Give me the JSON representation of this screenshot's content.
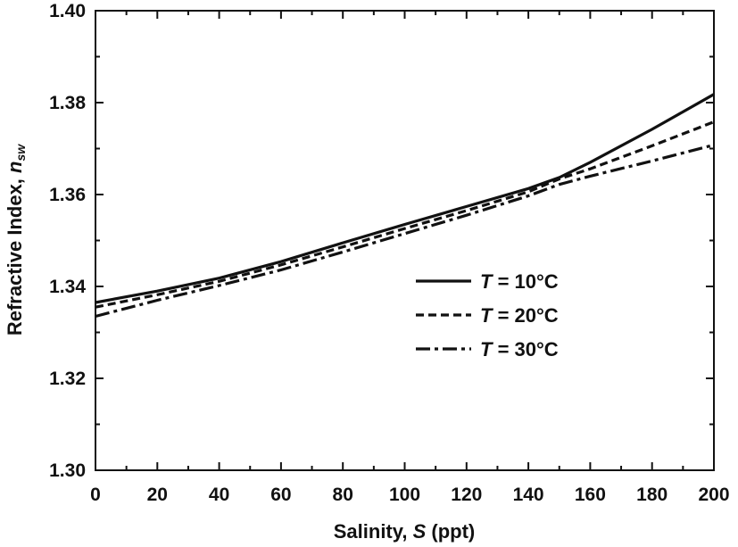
{
  "chart_data": {
    "type": "line",
    "title": "",
    "xlabel": {
      "prefix": "Salinity, ",
      "var": "S",
      "suffix": " (ppt)"
    },
    "ylabel": {
      "prefix": "Refractive Index, ",
      "var": "n",
      "sub": "sw"
    },
    "xlim": [
      0,
      200
    ],
    "ylim": [
      1.3,
      1.4
    ],
    "xticks": [
      0,
      20,
      40,
      60,
      80,
      100,
      120,
      140,
      160,
      180,
      200
    ],
    "yticks": [
      1.3,
      1.32,
      1.34,
      1.36,
      1.38,
      1.4
    ],
    "xtick_labels": [
      "0",
      "20",
      "40",
      "60",
      "80",
      "100",
      "120",
      "140",
      "160",
      "180",
      "200"
    ],
    "ytick_labels": [
      "1.30",
      "1.32",
      "1.34",
      "1.36",
      "1.38",
      "1.40"
    ],
    "grid": false,
    "legend_position": "center-right",
    "series": [
      {
        "name": "T = 10°C",
        "legend": {
          "var": "T",
          "rest": " = 10°C"
        },
        "style": "solid",
        "x": [
          0,
          20,
          40,
          60,
          80,
          100,
          120,
          140,
          150,
          160,
          180,
          200
        ],
        "y": [
          1.3365,
          1.339,
          1.3418,
          1.3454,
          1.3495,
          1.3535,
          1.3574,
          1.3613,
          1.3637,
          1.367,
          1.3742,
          1.3818
        ]
      },
      {
        "name": "T = 20°C",
        "legend": {
          "var": "T",
          "rest": " = 20°C"
        },
        "style": "dash",
        "x": [
          0,
          20,
          40,
          60,
          80,
          100,
          120,
          140,
          150,
          160,
          180,
          200
        ],
        "y": [
          1.3355,
          1.3382,
          1.3411,
          1.3447,
          1.3486,
          1.3526,
          1.3565,
          1.3606,
          1.3634,
          1.3656,
          1.3706,
          1.3758
        ]
      },
      {
        "name": "T = 30°C",
        "legend": {
          "var": "T",
          "rest": " = 30°C"
        },
        "style": "dashdot",
        "x": [
          0,
          20,
          40,
          60,
          80,
          100,
          120,
          140,
          150,
          160,
          180,
          200
        ],
        "y": [
          1.3335,
          1.337,
          1.3402,
          1.3436,
          1.3475,
          1.3515,
          1.3555,
          1.3597,
          1.3622,
          1.364,
          1.3673,
          1.3708
        ]
      }
    ]
  }
}
